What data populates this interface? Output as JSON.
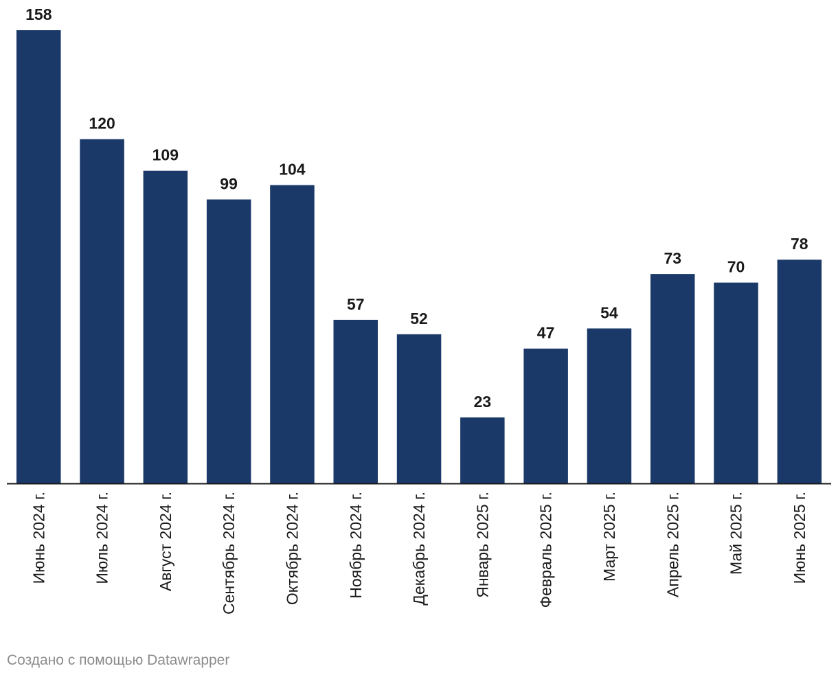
{
  "chart_data": {
    "type": "bar",
    "categories": [
      "Июнь 2024 г.",
      "Июль 2024 г.",
      "Август 2024 г.",
      "Сентябрь 2024 г.",
      "Октябрь 2024 г.",
      "Ноябрь 2024 г.",
      "Декабрь 2024 г.",
      "Январь 2025 г.",
      "Февраль 2025 г.",
      "Март 2025 г.",
      "Апрель 2025 г.",
      "Май 2025 г.",
      "Июнь 2025 г."
    ],
    "values": [
      158,
      120,
      109,
      99,
      104,
      57,
      52,
      23,
      47,
      54,
      73,
      70,
      78
    ],
    "title": "",
    "xlabel": "",
    "ylabel": "",
    "ylim": [
      0,
      158
    ],
    "grid": false,
    "legend": "none",
    "data_labels": true,
    "x_tick_rotation": "vertical",
    "colors": {
      "bar": "#1a3868",
      "label": "#1a1a1a",
      "tick": "#1a1a1a",
      "axis": "#1a1a1a"
    }
  },
  "footer": {
    "credit": "Создано с помощью Datawrapper"
  }
}
